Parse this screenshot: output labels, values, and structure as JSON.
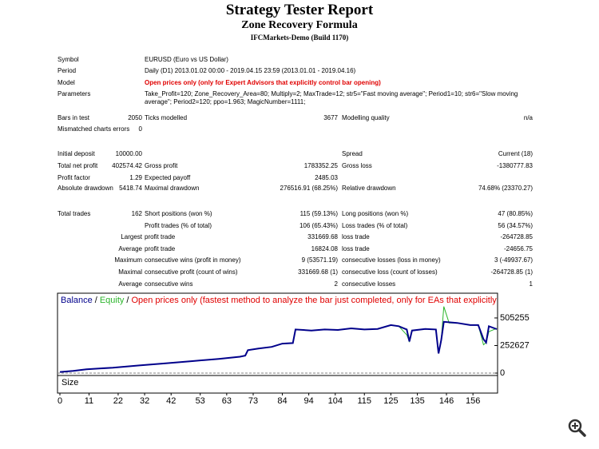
{
  "header": {
    "title": "Strategy Tester Report",
    "subtitle": "Zone Recovery Formula",
    "server": "IFCMarkets-Demo (Build 1170)"
  },
  "summary": {
    "rows": [
      {
        "y": 75,
        "label": "Symbol",
        "text": "EURUSD (Euro vs US Dollar)"
      },
      {
        "y": 89,
        "label": "Period",
        "text": "Daily (D1) 2013.01.02 00:00 - 2019.04.15 23:59 (2013.01.01 - 2019.04.16)"
      },
      {
        "y": 104,
        "label": "Model",
        "text": "Open prices only (only for Expert Advisors that explicitly control bar opening)",
        "emphasis": true
      },
      {
        "y": 118,
        "label": "Parameters",
        "text": "Take_Profit=120; Zone_Recovery_Area=80; Multiply=2; MaxTrade=12; str5=\"Fast moving average\"; Period1=10; str6=\"Slow moving average\"; Period2=120; ppo=1.963; MagicNumber=1111;"
      },
      {
        "y": 148,
        "label": "Bars in test",
        "value": "2050",
        "label2": "Ticks modelled",
        "value2": "3677",
        "label3": "Modelling quality",
        "value3": "n/a"
      },
      {
        "y": 162,
        "label": "Mismatched charts errors",
        "value": "0"
      },
      {
        "y": 193,
        "label": "Initial deposit",
        "value": "10000.00",
        "label3": "Spread",
        "value3": "Current (18)"
      },
      {
        "y": 208,
        "label": "Total net profit",
        "value": "402574.42",
        "label2": "Gross profit",
        "value2": "1783352.25",
        "label3": "Gross loss",
        "value3": "-1380777.83"
      },
      {
        "y": 223,
        "label": "Profit factor",
        "value": "1.29",
        "label2": "Expected payoff",
        "value2": "2485.03"
      },
      {
        "y": 236,
        "label": "Absolute drawdown",
        "value": "5418.74",
        "label2": "Maximal drawdown",
        "value2": "276516.91 (68.25%)",
        "label3": "Relative drawdown",
        "value3": "74.68% (23370.27)"
      },
      {
        "y": 268,
        "label": "Total trades",
        "value": "162",
        "label2": "Short positions (won %)",
        "value2": "115 (59.13%)",
        "label3": "Long positions (won %)",
        "value3": "47 (80.85%)"
      },
      {
        "y": 283,
        "label2": "Profit trades (% of total)",
        "value2": "106 (65.43%)",
        "label3": "Loss trades (% of total)",
        "value3": "56 (34.57%)"
      },
      {
        "y": 297,
        "value": "Largest",
        "label2": "profit trade",
        "value2": "331669.68",
        "label3": "loss trade",
        "value3": "-264728.85"
      },
      {
        "y": 312,
        "value": "Average",
        "label2": "profit trade",
        "value2": "16824.08",
        "label3": "loss trade",
        "value3": "-24656.75"
      },
      {
        "y": 326,
        "value": "Maximum",
        "label2": "consecutive wins (profit in money)",
        "value2": "9 (53571.19)",
        "label3": "consecutive losses (loss in money)",
        "value3": "3 (-49937.67)"
      },
      {
        "y": 341,
        "value": "Maximal",
        "label2": "consecutive profit (count of wins)",
        "value2": "331669.68 (1)",
        "label3": "consecutive loss (count of losses)",
        "value3": "-264728.85 (1)"
      },
      {
        "y": 356,
        "value": "Average",
        "label2": "consecutive wins",
        "value2": "2",
        "label3": "consecutive losses",
        "value3": "1"
      }
    ]
  },
  "chart_data": {
    "type": "line",
    "legend": [
      "Balance",
      "Equity",
      "Open prices only (fastest method to analyze the bar just completed, only for EAs that explicitly control b"
    ],
    "legend_separator": "/",
    "size_label": "Size",
    "xlim": [
      0,
      165
    ],
    "ylim": [
      0,
      710000
    ],
    "xticks": [
      0,
      11,
      22,
      32,
      42,
      53,
      63,
      73,
      84,
      94,
      104,
      115,
      125,
      135,
      146,
      156
    ],
    "yticks": [
      0,
      252627,
      505255
    ],
    "series": [
      {
        "name": "Equity",
        "color": "#2bb52b",
        "x": [
          0,
          5,
          10,
          20,
          30,
          40,
          50,
          60,
          68,
          70,
          71,
          75,
          80,
          84,
          88,
          89,
          95,
          100,
          105,
          110,
          115,
          120,
          125,
          128,
          131,
          132,
          133,
          138,
          142,
          143,
          144,
          145,
          147,
          150,
          155,
          158,
          160,
          161,
          162,
          165
        ],
        "values": [
          10000,
          20000,
          35000,
          50000,
          70000,
          90000,
          110000,
          130000,
          150000,
          160000,
          210000,
          225000,
          240000,
          270000,
          275000,
          400000,
          390000,
          400000,
          395000,
          410000,
          400000,
          405000,
          440000,
          430000,
          350000,
          290000,
          390000,
          405000,
          400000,
          180000,
          300000,
          610000,
          460000,
          460000,
          440000,
          440000,
          260000,
          280000,
          380000,
          410000
        ]
      },
      {
        "name": "Balance",
        "color": "#00008b",
        "x": [
          0,
          5,
          10,
          20,
          30,
          40,
          50,
          60,
          68,
          70,
          71,
          75,
          80,
          84,
          88,
          89,
          95,
          100,
          105,
          110,
          115,
          120,
          125,
          128,
          131,
          132,
          133,
          138,
          142,
          143,
          144,
          145,
          150,
          155,
          158,
          160,
          161,
          162,
          165
        ],
        "values": [
          10000,
          20000,
          35000,
          50000,
          70000,
          90000,
          110000,
          130000,
          150000,
          160000,
          210000,
          225000,
          240000,
          270000,
          275000,
          400000,
          390000,
          400000,
          395000,
          410000,
          400000,
          405000,
          440000,
          430000,
          400000,
          290000,
          390000,
          405000,
          400000,
          180000,
          300000,
          470000,
          460000,
          440000,
          440000,
          310000,
          280000,
          430000,
          402574
        ]
      }
    ]
  }
}
